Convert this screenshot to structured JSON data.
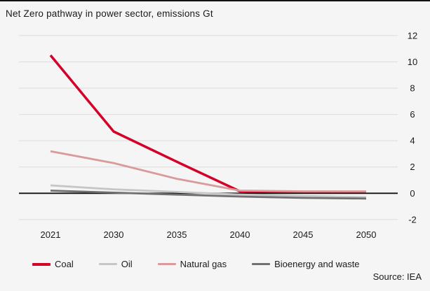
{
  "header": {
    "title": "Net Zero pathway in power sector, emissions Gt"
  },
  "footer": {
    "source": "Source: IEA"
  },
  "colors": {
    "background": "#f5f5f5",
    "top_rule": "#111111",
    "gridline": "#dcdcdc",
    "zero_axis": "#111111",
    "text": "#1a1a1a",
    "coal": "#d40028",
    "oil": "#c6c6c6",
    "natural_gas": "#d89a9a",
    "bioenergy": "#707070"
  },
  "chart_data": {
    "type": "line",
    "title": "Net Zero pathway in power sector, emissions Gt",
    "xlabel": "",
    "ylabel": "emissions Gt",
    "categories": [
      "2021",
      "2030",
      "2035",
      "2040",
      "2045",
      "2050"
    ],
    "series": [
      {
        "name": "Coal",
        "color": "#d40028",
        "stroke_width": 3.5,
        "values": [
          10.5,
          4.7,
          2.4,
          0.15,
          0.1,
          0.1
        ]
      },
      {
        "name": "Oil",
        "color": "#c6c6c6",
        "stroke_width": 2.8,
        "values": [
          0.6,
          0.3,
          0.1,
          -0.1,
          -0.2,
          -0.3
        ]
      },
      {
        "name": "Natural gas",
        "color": "#d89a9a",
        "stroke_width": 2.8,
        "values": [
          3.2,
          2.3,
          1.1,
          0.2,
          0.15,
          0.15
        ]
      },
      {
        "name": "Bioenergy and waste",
        "color": "#707070",
        "stroke_width": 2.8,
        "values": [
          0.2,
          0.05,
          -0.1,
          -0.25,
          -0.35,
          -0.4
        ]
      }
    ],
    "ylim": [
      -2,
      12
    ],
    "yticks": [
      12,
      10,
      8,
      6,
      4,
      2,
      0,
      -2
    ],
    "grid": true,
    "legend_position": "bottom",
    "y_axis_side": "right",
    "source": "Source: IEA"
  }
}
